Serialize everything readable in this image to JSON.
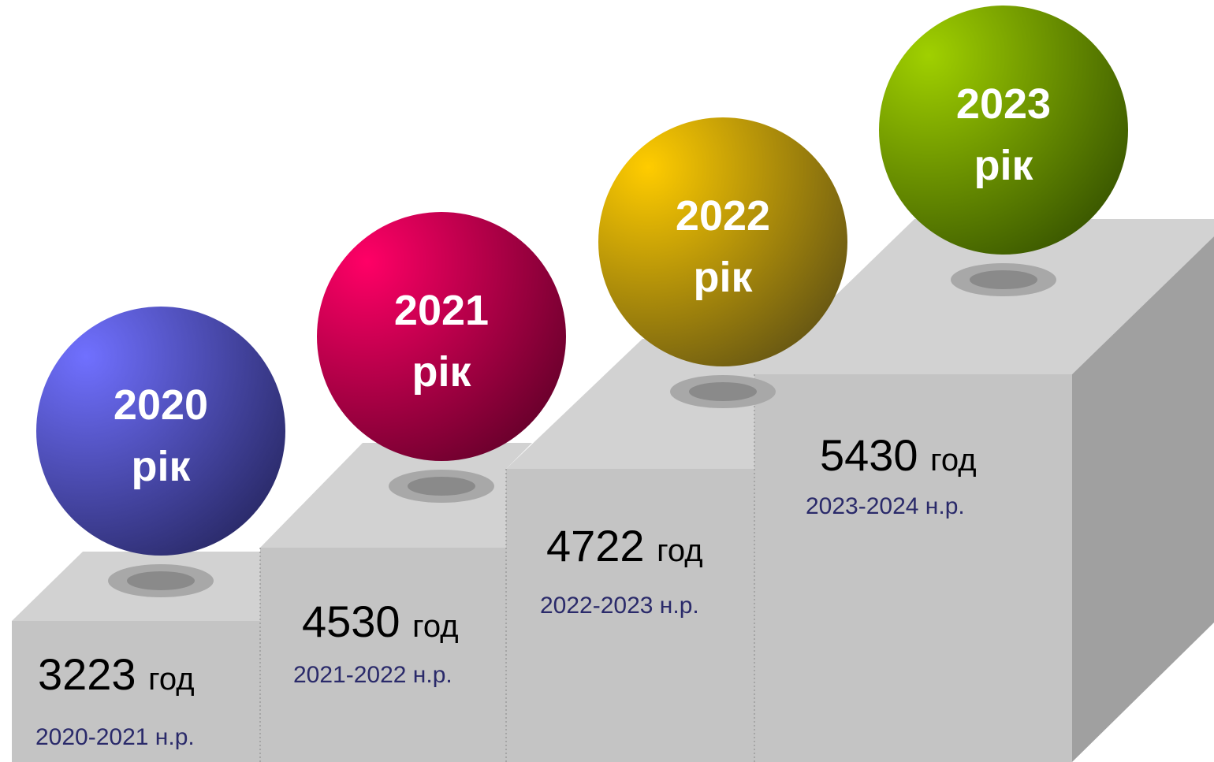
{
  "steps": [
    {
      "year": "2020",
      "year_unit": "рік",
      "hours": 3223,
      "hours_unit": "год",
      "period": "2020-2021 н.р."
    },
    {
      "year": "2021",
      "year_unit": "рік",
      "hours": 4530,
      "hours_unit": "год",
      "period": "2021-2022 н.р."
    },
    {
      "year": "2022",
      "year_unit": "рік",
      "hours": 4722,
      "hours_unit": "год",
      "period": "2022-2023 н.р."
    },
    {
      "year": "2023",
      "year_unit": "рік",
      "hours": 5430,
      "hours_unit": "год",
      "period": "2023-2024 н.р."
    }
  ]
}
